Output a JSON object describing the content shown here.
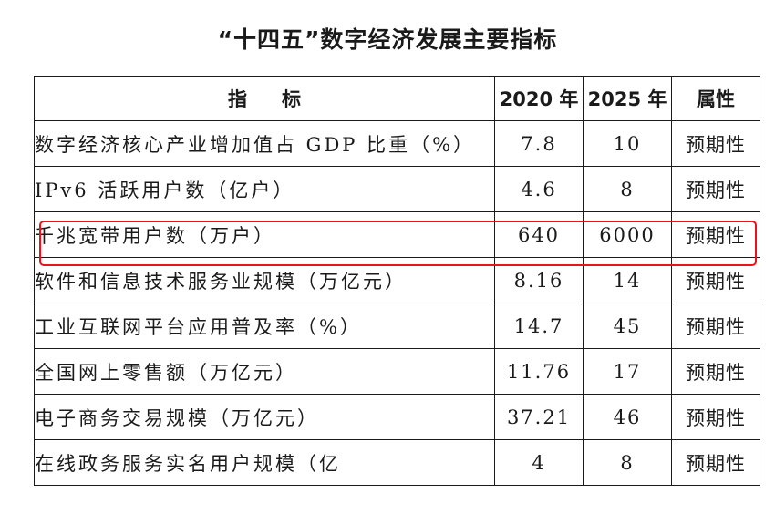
{
  "title": "“十四五”数字经济发展主要指标",
  "table": {
    "headers": {
      "indicator": "指标",
      "y2020": "2020 年",
      "y2025": "2025 年",
      "attribute": "属性"
    },
    "rows": [
      {
        "indicator": "数字经济核心产业增加值占 GDP 比重（%）",
        "v2020": "7.8",
        "v2025": "10",
        "attribute": "预期性"
      },
      {
        "indicator": "IPv6 活跃用户数（亿户）",
        "v2020": "4.6",
        "v2025": "8",
        "attribute": "预期性"
      },
      {
        "indicator": "千兆宽带用户数（万户）",
        "v2020": "640",
        "v2025": "6000",
        "attribute": "预期性"
      },
      {
        "indicator": "软件和信息技术服务业规模（万亿元）",
        "v2020": "8.16",
        "v2025": "14",
        "attribute": "预期性"
      },
      {
        "indicator": "工业互联网平台应用普及率（%）",
        "v2020": "14.7",
        "v2025": "45",
        "attribute": "预期性"
      },
      {
        "indicator": "全国网上零售额（万亿元）",
        "v2020": "11.76",
        "v2025": "17",
        "attribute": "预期性"
      },
      {
        "indicator": "电子商务交易规模（万亿元）",
        "v2020": "37.21",
        "v2025": "46",
        "attribute": "预期性"
      },
      {
        "indicator": "在线政务服务实名用户规模（亿",
        "v2020": "4",
        "v2025": "8",
        "attribute": "预期性"
      }
    ]
  },
  "highlight": {
    "row_index": 2,
    "color": "#e8141c"
  }
}
